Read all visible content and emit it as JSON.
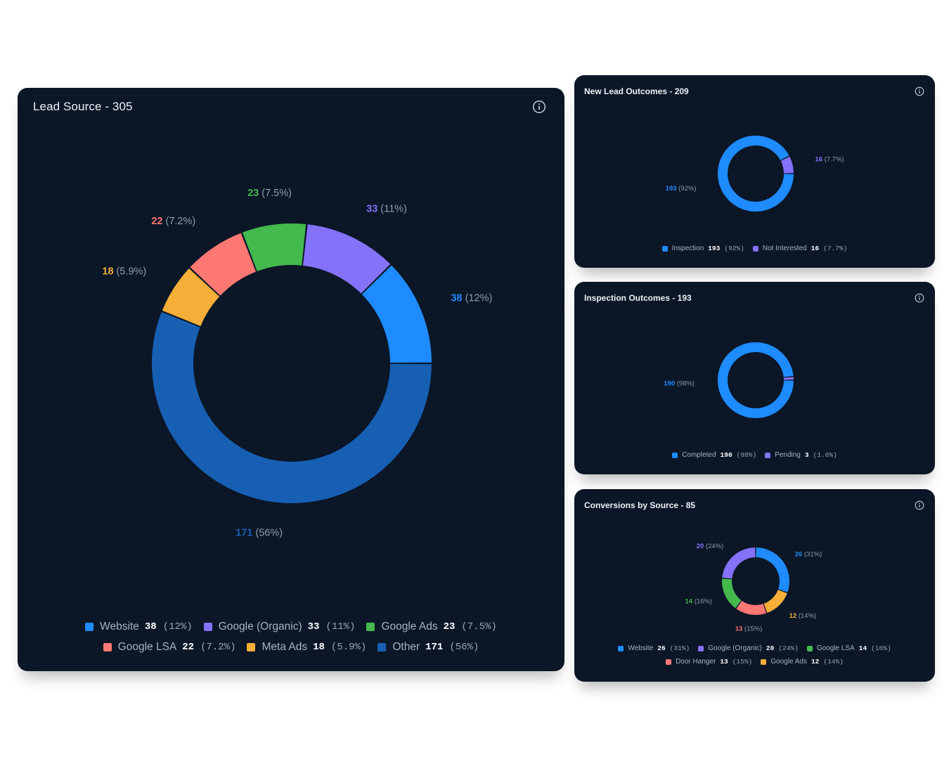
{
  "colors": {
    "background": "#0b1627",
    "blue": "#1e8bff",
    "dark_blue": "#175fb3",
    "purple": "#8472fb",
    "green": "#43b94e",
    "coral": "#fd7773",
    "orange": "#f5ae37",
    "pct_text": "#8f9bb0"
  },
  "icons": {
    "info": "info-circle-icon"
  },
  "chart_data": [
    {
      "type": "pie",
      "donut": true,
      "title": "Lead Source - 305",
      "slices": [
        {
          "name": "Website",
          "value": 38,
          "pct": "12%",
          "color": "#1e8bff"
        },
        {
          "name": "Google (Organic)",
          "value": 33,
          "pct": "11%",
          "color": "#8472fb"
        },
        {
          "name": "Google Ads",
          "value": 23,
          "pct": "7.5%",
          "color": "#43b94e"
        },
        {
          "name": "Google LSA",
          "value": 22,
          "pct": "7.2%",
          "color": "#fd7773"
        },
        {
          "name": "Meta Ads",
          "value": 18,
          "pct": "5.9%",
          "color": "#f5ae37"
        },
        {
          "name": "Other",
          "value": 171,
          "pct": "56%",
          "color": "#175fb3"
        }
      ],
      "legend_rows": [
        [
          "Website",
          "Google (Organic)",
          "Google Ads"
        ],
        [
          "Google LSA",
          "Meta Ads",
          "Other"
        ]
      ],
      "legend_position": "bottom"
    },
    {
      "type": "pie",
      "donut": true,
      "title": "New Lead Outcomes - 209",
      "slices": [
        {
          "name": "Inspection",
          "value": 193,
          "pct": "92%",
          "color": "#1e8bff"
        },
        {
          "name": "Not Interested",
          "value": 16,
          "pct": "7.7%",
          "color": "#8472fb"
        }
      ],
      "legend_rows": [
        [
          "Inspection",
          "Not Interested"
        ]
      ],
      "legend_position": "bottom"
    },
    {
      "type": "pie",
      "donut": true,
      "title": "Inspection Outcomes - 193",
      "slices": [
        {
          "name": "Completed",
          "value": 190,
          "pct": "98%",
          "color": "#1e8bff"
        },
        {
          "name": "Pending",
          "value": 3,
          "pct": "1.6%",
          "color": "#8472fb"
        }
      ],
      "hidden_data_labels": [
        "Pending"
      ],
      "legend_rows": [
        [
          "Completed",
          "Pending"
        ]
      ],
      "legend_position": "bottom"
    },
    {
      "type": "pie",
      "donut": true,
      "title": "Conversions by Source - 85",
      "slices": [
        {
          "name": "Website",
          "value": 26,
          "pct": "31%",
          "color": "#1e8bff"
        },
        {
          "name": "Google Ads",
          "value": 12,
          "pct": "14%",
          "color": "#f5ae37"
        },
        {
          "name": "Door Hanger",
          "value": 13,
          "pct": "15%",
          "color": "#fd7773"
        },
        {
          "name": "Google LSA",
          "value": 14,
          "pct": "16%",
          "color": "#43b94e"
        },
        {
          "name": "Google (Organic)",
          "value": 20,
          "pct": "24%",
          "color": "#8472fb"
        }
      ],
      "legend_rows": [
        [
          "Website",
          "Google (Organic)",
          "Google LSA"
        ],
        [
          "Door Hanger",
          "Google Ads"
        ]
      ],
      "legend_position": "bottom"
    }
  ]
}
